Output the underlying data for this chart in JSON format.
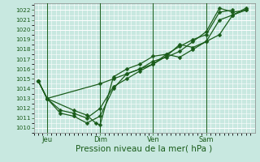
{
  "xlabel": "Pression niveau de la mer( hPa )",
  "bg_color": "#c8e8e0",
  "grid_color": "#ffffff",
  "line_color": "#1a5c1a",
  "ylim": [
    1009.5,
    1022.7
  ],
  "xlim": [
    -2,
    98
  ],
  "yticks": [
    1010,
    1011,
    1012,
    1013,
    1014,
    1015,
    1016,
    1017,
    1018,
    1019,
    1020,
    1021,
    1022
  ],
  "xtick_positions": [
    4,
    28,
    52,
    76
  ],
  "xtick_labels": [
    "Jeu",
    "Dim",
    "Ven",
    "Sam"
  ],
  "vlines": [
    4,
    28,
    52,
    76
  ],
  "series1": [
    [
      0,
      1014.8
    ],
    [
      4,
      1013.0
    ],
    [
      16,
      1011.8
    ],
    [
      22,
      1011.3
    ],
    [
      26,
      1010.5
    ],
    [
      28,
      1010.3
    ],
    [
      34,
      1015.2
    ],
    [
      40,
      1016.0
    ],
    [
      46,
      1016.5
    ],
    [
      52,
      1017.3
    ],
    [
      58,
      1017.5
    ],
    [
      64,
      1018.3
    ],
    [
      70,
      1019.0
    ],
    [
      76,
      1019.5
    ],
    [
      82,
      1021.8
    ],
    [
      88,
      1022.0
    ]
  ],
  "series2": [
    [
      0,
      1014.8
    ],
    [
      4,
      1013.0
    ],
    [
      28,
      1014.5
    ],
    [
      34,
      1015.0
    ],
    [
      40,
      1015.5
    ],
    [
      46,
      1016.0
    ],
    [
      52,
      1016.5
    ],
    [
      58,
      1017.3
    ],
    [
      64,
      1018.5
    ],
    [
      70,
      1018.2
    ],
    [
      76,
      1018.8
    ],
    [
      82,
      1021.0
    ],
    [
      88,
      1021.5
    ],
    [
      94,
      1022.0
    ]
  ],
  "series3": [
    [
      0,
      1014.8
    ],
    [
      4,
      1013.0
    ],
    [
      10,
      1011.8
    ],
    [
      16,
      1011.5
    ],
    [
      22,
      1011.0
    ],
    [
      28,
      1012.0
    ],
    [
      34,
      1014.2
    ],
    [
      40,
      1015.0
    ],
    [
      46,
      1015.8
    ],
    [
      52,
      1016.5
    ],
    [
      58,
      1017.5
    ],
    [
      64,
      1017.2
    ],
    [
      70,
      1018.0
    ],
    [
      76,
      1018.8
    ],
    [
      82,
      1019.5
    ],
    [
      88,
      1021.5
    ],
    [
      94,
      1022.2
    ]
  ],
  "series4": [
    [
      0,
      1014.8
    ],
    [
      4,
      1013.0
    ],
    [
      10,
      1011.5
    ],
    [
      16,
      1011.2
    ],
    [
      22,
      1010.5
    ],
    [
      28,
      1011.2
    ],
    [
      34,
      1014.0
    ],
    [
      40,
      1015.5
    ],
    [
      46,
      1016.0
    ],
    [
      52,
      1016.8
    ],
    [
      58,
      1017.2
    ],
    [
      64,
      1017.8
    ],
    [
      70,
      1018.8
    ],
    [
      76,
      1019.8
    ],
    [
      82,
      1022.2
    ],
    [
      88,
      1021.8
    ],
    [
      94,
      1022.0
    ]
  ]
}
